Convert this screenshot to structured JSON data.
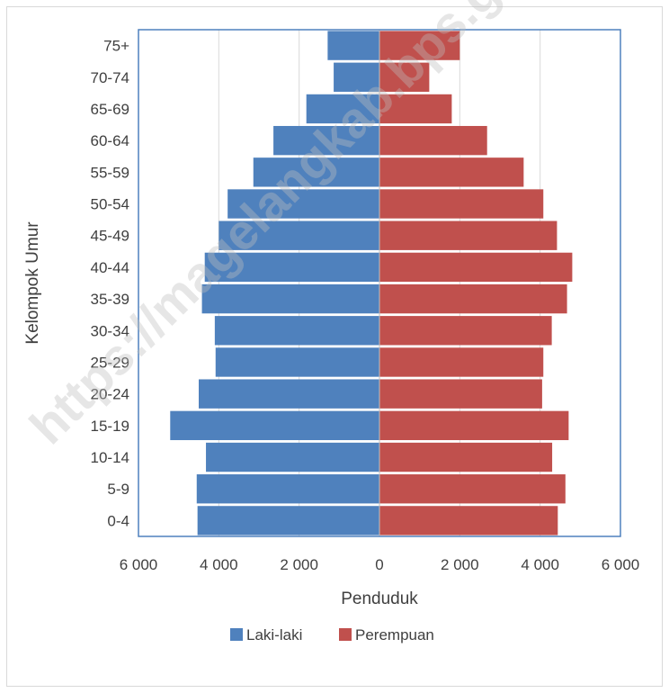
{
  "chart_data": {
    "type": "bar",
    "orientation": "horizontal",
    "subtype": "population-pyramid",
    "categories": [
      "0-4",
      "5-9",
      "10-14",
      "15-19",
      "20-24",
      "25-29",
      "30-34",
      "35-39",
      "40-44",
      "45-49",
      "50-54",
      "55-59",
      "60-64",
      "65-69",
      "70-74",
      "75+"
    ],
    "series": [
      {
        "name": "Laki-laki",
        "color": "#4f81bd",
        "values": [
          4530,
          4550,
          4320,
          5210,
          4500,
          4080,
          4100,
          4420,
          4350,
          4000,
          3780,
          3140,
          2640,
          1820,
          1140,
          1290
        ]
      },
      {
        "name": "Perempuan",
        "color": "#c0504d",
        "values": [
          4440,
          4630,
          4300,
          4710,
          4050,
          4080,
          4290,
          4670,
          4800,
          4420,
          4080,
          3590,
          2680,
          1800,
          1240,
          2000
        ]
      }
    ],
    "xlabel": "Penduduk",
    "ylabel": "Kelompok Umur",
    "xlim": [
      -6000,
      6000
    ],
    "xticks": [
      -6000,
      -4000,
      -2000,
      0,
      2000,
      4000,
      6000
    ],
    "xtick_labels": [
      "6 000",
      "4 000",
      "2 000",
      "0",
      "2 000",
      "4 000",
      "6 000"
    ],
    "grid": "vertical",
    "legend": "bottom",
    "plot_border_color": "#4f81bd"
  },
  "watermark": "https://magelangkab.bps.go.id"
}
